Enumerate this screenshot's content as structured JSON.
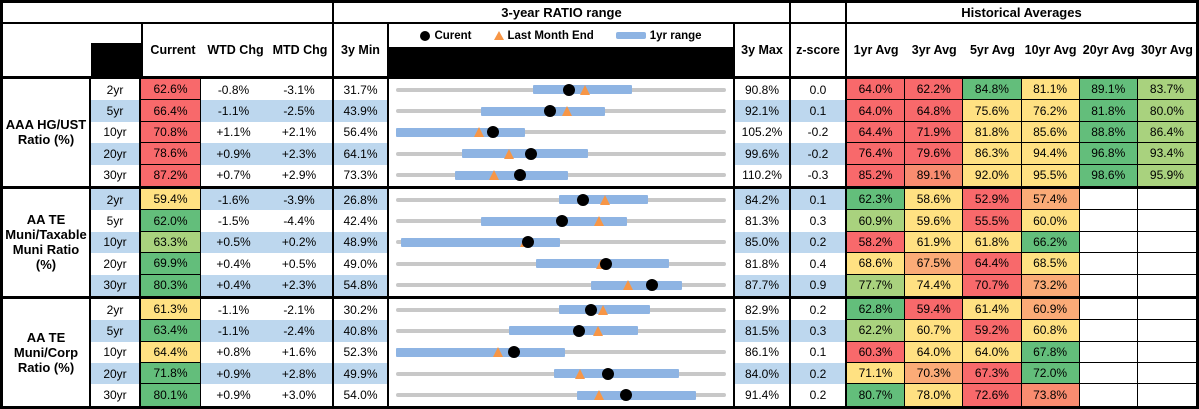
{
  "header": {
    "chart_title": "3-year RATIO range",
    "hist_title": "Historical Averages",
    "col_current": "Current",
    "col_wtd": "WTD Chg",
    "col_mtd": "MTD Chg",
    "col_3ymin": "3y Min",
    "col_3ymax": "3y Max",
    "col_zscore": "z-score",
    "avg_cols": [
      "1yr Avg",
      "3yr Avg",
      "5yr Avg",
      "10yr Avg",
      "20yr Avg",
      "30yr Avg"
    ],
    "legend": {
      "current_label": "Curent",
      "last_month_label": "Last Month End",
      "range_label": "1yr range"
    }
  },
  "colors": {
    "red": "#F8696B",
    "salmon": "#F98C70",
    "orange": "#FBAB77",
    "yellow": "#FFE182",
    "yellowgreen": "#A9D27E",
    "green": "#63BE7B",
    "band_blue": "#BDD7EE",
    "range_bar_blue": "#8EB4E3",
    "baseline_gray": "#C8C8C8",
    "marker_orange": "#F79646",
    "marker_black": "#000000"
  },
  "chart_data": {
    "type": "table",
    "note": "Each row also carries an inline range chart: gray line spans 3y Min to 3y Max, blue bar is the 1yr range, black dot is Current, orange triangle is Last Month End (Current minus MTD Chg).",
    "sections": [
      {
        "label": "AAA HG/UST\nRatio (%)",
        "rows": [
          {
            "tenor": "2yr",
            "current": "62.6%",
            "current_color": "red",
            "wtd": "-0.8%",
            "mtd": "-3.1%",
            "min": "31.7%",
            "max": "90.8%",
            "z": "0.0",
            "range_1yr": [
              56.3,
              73.9
            ],
            "avgs": [
              {
                "v": "64.0%",
                "c": "red"
              },
              {
                "v": "62.2%",
                "c": "red"
              },
              {
                "v": "84.8%",
                "c": "green"
              },
              {
                "v": "81.1%",
                "c": "yellow"
              },
              {
                "v": "89.1%",
                "c": "green"
              },
              {
                "v": "83.7%",
                "c": "yellowgreen"
              }
            ]
          },
          {
            "tenor": "5yr",
            "current": "66.4%",
            "current_color": "red",
            "wtd": "-1.1%",
            "mtd": "-2.5%",
            "min": "43.9%",
            "max": "92.1%",
            "z": "0.1",
            "range_1yr": [
              56.3,
              74.4
            ],
            "avgs": [
              {
                "v": "64.0%",
                "c": "red"
              },
              {
                "v": "64.8%",
                "c": "red"
              },
              {
                "v": "75.6%",
                "c": "yellow"
              },
              {
                "v": "76.2%",
                "c": "yellow"
              },
              {
                "v": "81.8%",
                "c": "green"
              },
              {
                "v": "80.0%",
                "c": "yellowgreen"
              }
            ]
          },
          {
            "tenor": "10yr",
            "current": "70.8%",
            "current_color": "red",
            "wtd": "+1.1%",
            "mtd": "+2.1%",
            "min": "56.4%",
            "max": "105.2%",
            "z": "-0.2",
            "range_1yr": [
              56.4,
              75.5
            ],
            "avgs": [
              {
                "v": "64.4%",
                "c": "red"
              },
              {
                "v": "71.9%",
                "c": "red"
              },
              {
                "v": "81.8%",
                "c": "yellow"
              },
              {
                "v": "85.6%",
                "c": "yellow"
              },
              {
                "v": "88.8%",
                "c": "green"
              },
              {
                "v": "86.4%",
                "c": "yellowgreen"
              }
            ]
          },
          {
            "tenor": "20yr",
            "current": "78.6%",
            "current_color": "red",
            "wtd": "+0.9%",
            "mtd": "+2.3%",
            "min": "64.1%",
            "max": "99.6%",
            "z": "-0.2",
            "range_1yr": [
              71.2,
              84.8
            ],
            "avgs": [
              {
                "v": "76.4%",
                "c": "red"
              },
              {
                "v": "79.6%",
                "c": "red"
              },
              {
                "v": "86.3%",
                "c": "yellow"
              },
              {
                "v": "94.4%",
                "c": "yellow"
              },
              {
                "v": "96.8%",
                "c": "green"
              },
              {
                "v": "93.4%",
                "c": "yellowgreen"
              }
            ]
          },
          {
            "tenor": "30yr",
            "current": "87.2%",
            "current_color": "red",
            "wtd": "+0.7%",
            "mtd": "+2.9%",
            "min": "73.3%",
            "max": "110.2%",
            "z": "-0.3",
            "range_1yr": [
              79.9,
              92.5
            ],
            "avgs": [
              {
                "v": "85.2%",
                "c": "red"
              },
              {
                "v": "89.1%",
                "c": "salmon"
              },
              {
                "v": "92.0%",
                "c": "yellow"
              },
              {
                "v": "95.5%",
                "c": "yellow"
              },
              {
                "v": "98.6%",
                "c": "green"
              },
              {
                "v": "95.9%",
                "c": "yellowgreen"
              }
            ]
          }
        ]
      },
      {
        "label": "AA TE\nMuni/Taxable\nMuni Ratio\n(%)",
        "rows": [
          {
            "tenor": "2yr",
            "current": "59.4%",
            "current_color": "yellow",
            "wtd": "-1.6%",
            "mtd": "-3.9%",
            "min": "26.8%",
            "max": "84.2%",
            "z": "0.1",
            "range_1yr": [
              55.2,
              70.6
            ],
            "avgs": [
              {
                "v": "62.3%",
                "c": "green"
              },
              {
                "v": "58.6%",
                "c": "yellow"
              },
              {
                "v": "52.9%",
                "c": "red"
              },
              {
                "v": "57.4%",
                "c": "orange"
              },
              null,
              null
            ]
          },
          {
            "tenor": "5yr",
            "current": "62.0%",
            "current_color": "green",
            "wtd": "-1.5%",
            "mtd": "-4.4%",
            "min": "42.4%",
            "max": "81.3%",
            "z": "0.3",
            "range_1yr": [
              52.4,
              69.6
            ],
            "avgs": [
              {
                "v": "60.9%",
                "c": "yellowgreen"
              },
              {
                "v": "59.6%",
                "c": "yellow"
              },
              {
                "v": "55.5%",
                "c": "red"
              },
              {
                "v": "60.0%",
                "c": "yellow"
              },
              null,
              null
            ]
          },
          {
            "tenor": "10yr",
            "current": "63.3%",
            "current_color": "yellowgreen",
            "wtd": "+0.5%",
            "mtd": "+0.2%",
            "min": "48.9%",
            "max": "85.0%",
            "z": "0.2",
            "range_1yr": [
              49.4,
              66.8
            ],
            "avgs": [
              {
                "v": "58.2%",
                "c": "red"
              },
              {
                "v": "61.9%",
                "c": "yellow"
              },
              {
                "v": "61.8%",
                "c": "yellow"
              },
              {
                "v": "66.2%",
                "c": "green"
              },
              null,
              null
            ]
          },
          {
            "tenor": "20yr",
            "current": "69.9%",
            "current_color": "green",
            "wtd": "+0.4%",
            "mtd": "+0.5%",
            "min": "49.0%",
            "max": "81.8%",
            "z": "0.4",
            "range_1yr": [
              62.9,
              76.1
            ],
            "avgs": [
              {
                "v": "68.6%",
                "c": "yellow"
              },
              {
                "v": "67.5%",
                "c": "orange"
              },
              {
                "v": "64.4%",
                "c": "red"
              },
              {
                "v": "68.5%",
                "c": "yellow"
              },
              null,
              null
            ]
          },
          {
            "tenor": "30yr",
            "current": "80.3%",
            "current_color": "green",
            "wtd": "+0.4%",
            "mtd": "+2.3%",
            "min": "54.8%",
            "max": "87.7%",
            "z": "0.9",
            "range_1yr": [
              74.2,
              83.3
            ],
            "avgs": [
              {
                "v": "77.7%",
                "c": "yellowgreen"
              },
              {
                "v": "74.4%",
                "c": "yellow"
              },
              {
                "v": "70.7%",
                "c": "red"
              },
              {
                "v": "73.2%",
                "c": "orange"
              },
              null,
              null
            ]
          }
        ]
      },
      {
        "label": "AA TE\nMuni/Corp\nRatio (%)",
        "rows": [
          {
            "tenor": "2yr",
            "current": "61.3%",
            "current_color": "yellow",
            "wtd": "-1.1%",
            "mtd": "-2.1%",
            "min": "30.2%",
            "max": "82.9%",
            "z": "0.2",
            "range_1yr": [
              56.3,
              70.7
            ],
            "avgs": [
              {
                "v": "62.8%",
                "c": "green"
              },
              {
                "v": "59.4%",
                "c": "red"
              },
              {
                "v": "61.4%",
                "c": "yellow"
              },
              {
                "v": "60.9%",
                "c": "orange"
              },
              null,
              null
            ]
          },
          {
            "tenor": "5yr",
            "current": "63.4%",
            "current_color": "green",
            "wtd": "-1.1%",
            "mtd": "-2.4%",
            "min": "40.8%",
            "max": "81.5%",
            "z": "0.3",
            "range_1yr": [
              54.7,
              70.6
            ],
            "avgs": [
              {
                "v": "62.2%",
                "c": "yellowgreen"
              },
              {
                "v": "60.7%",
                "c": "yellow"
              },
              {
                "v": "59.2%",
                "c": "red"
              },
              {
                "v": "60.8%",
                "c": "yellow"
              },
              null,
              null
            ]
          },
          {
            "tenor": "10yr",
            "current": "64.4%",
            "current_color": "yellow",
            "wtd": "+0.8%",
            "mtd": "+1.6%",
            "min": "52.3%",
            "max": "86.1%",
            "z": "0.1",
            "range_1yr": [
              52.3,
              69.6
            ],
            "avgs": [
              {
                "v": "60.3%",
                "c": "red"
              },
              {
                "v": "64.0%",
                "c": "yellow"
              },
              {
                "v": "64.0%",
                "c": "yellow"
              },
              {
                "v": "67.8%",
                "c": "green"
              },
              null,
              null
            ]
          },
          {
            "tenor": "20yr",
            "current": "71.8%",
            "current_color": "green",
            "wtd": "+0.9%",
            "mtd": "+2.8%",
            "min": "49.9%",
            "max": "84.0%",
            "z": "0.2",
            "range_1yr": [
              66.2,
              79.1
            ],
            "avgs": [
              {
                "v": "71.1%",
                "c": "yellow"
              },
              {
                "v": "70.3%",
                "c": "orange"
              },
              {
                "v": "67.3%",
                "c": "red"
              },
              {
                "v": "72.0%",
                "c": "green"
              },
              null,
              null
            ]
          },
          {
            "tenor": "30yr",
            "current": "80.1%",
            "current_color": "green",
            "wtd": "+0.9%",
            "mtd": "+3.0%",
            "min": "54.0%",
            "max": "91.4%",
            "z": "0.2",
            "range_1yr": [
              74.5,
              88.0
            ],
            "avgs": [
              {
                "v": "80.7%",
                "c": "green"
              },
              {
                "v": "78.0%",
                "c": "yellow"
              },
              {
                "v": "72.6%",
                "c": "red"
              },
              {
                "v": "73.8%",
                "c": "salmon"
              },
              null,
              null
            ]
          }
        ]
      }
    ]
  }
}
